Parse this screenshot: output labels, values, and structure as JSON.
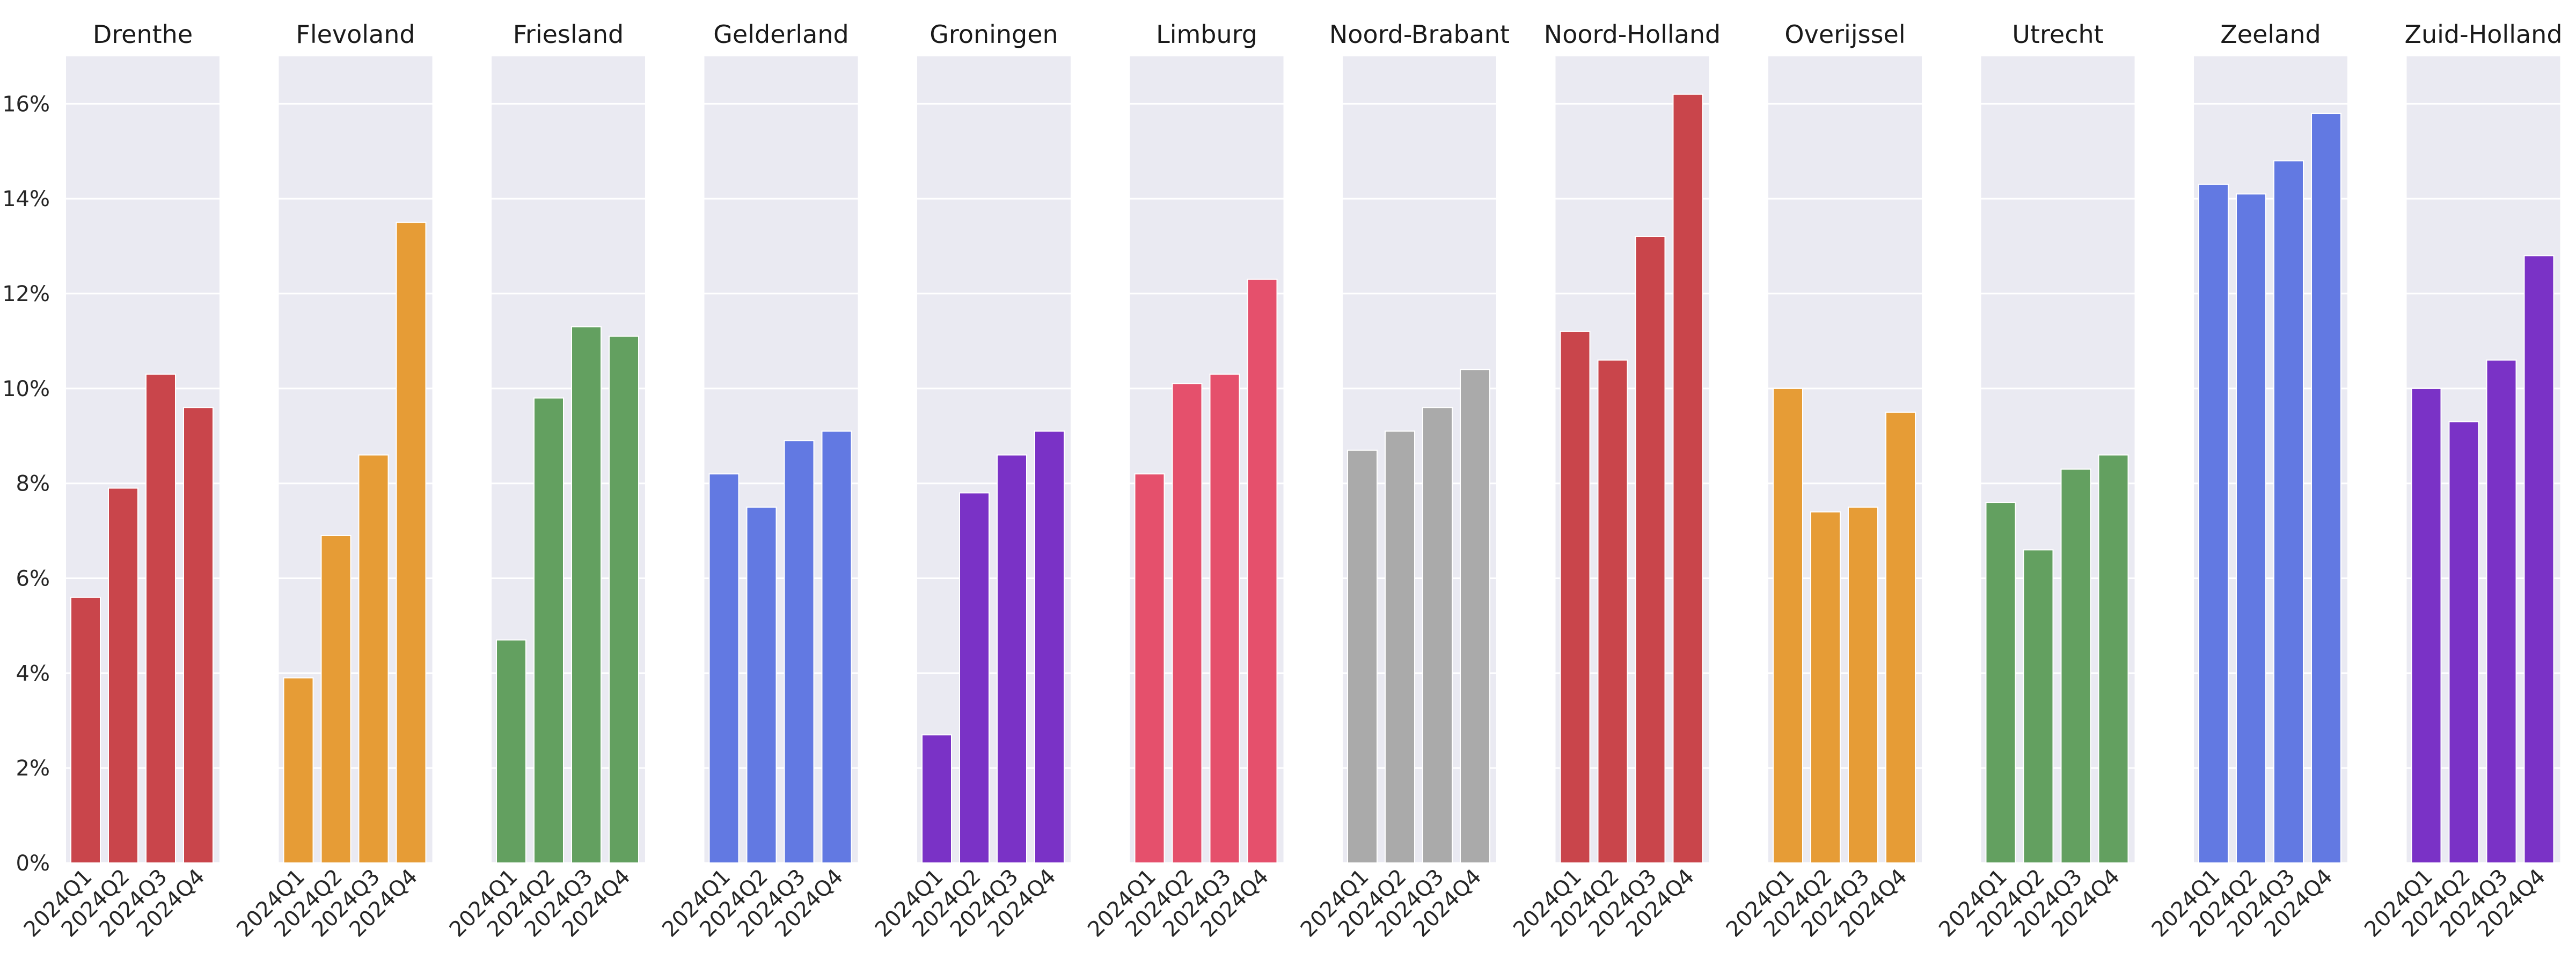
{
  "chart_data": {
    "type": "bar",
    "layout": "small-multiples",
    "ylim": [
      0,
      17
    ],
    "yticks": [
      0,
      2,
      4,
      6,
      8,
      10,
      12,
      14,
      16
    ],
    "ytick_labels": [
      "0%",
      "2%",
      "4%",
      "6%",
      "8%",
      "10%",
      "12%",
      "14%",
      "16%"
    ],
    "categories": [
      "2024Q1",
      "2024Q2",
      "2024Q3",
      "2024Q4"
    ],
    "grid": true,
    "panels": [
      {
        "title": "Drenthe",
        "color": "#c9454b",
        "values": [
          5.6,
          7.9,
          10.3,
          9.6
        ]
      },
      {
        "title": "Flevoland",
        "color": "#e69c36",
        "values": [
          3.9,
          6.9,
          8.6,
          13.5
        ]
      },
      {
        "title": "Friesland",
        "color": "#63a060",
        "values": [
          4.7,
          9.8,
          11.3,
          11.1
        ]
      },
      {
        "title": "Gelderland",
        "color": "#6279e2",
        "values": [
          8.2,
          7.5,
          8.9,
          9.1
        ]
      },
      {
        "title": "Groningen",
        "color": "#7a32c6",
        "values": [
          2.7,
          7.8,
          8.6,
          9.1
        ]
      },
      {
        "title": "Limburg",
        "color": "#e5506c",
        "values": [
          8.2,
          10.1,
          10.3,
          12.3
        ]
      },
      {
        "title": "Noord-Brabant",
        "color": "#aaaaaa",
        "values": [
          8.7,
          9.1,
          9.6,
          10.4
        ]
      },
      {
        "title": "Noord-Holland",
        "color": "#c9454b",
        "values": [
          11.2,
          10.6,
          13.2,
          16.2
        ]
      },
      {
        "title": "Overijssel",
        "color": "#e69c36",
        "values": [
          10.0,
          7.4,
          7.5,
          9.5
        ]
      },
      {
        "title": "Utrecht",
        "color": "#63a060",
        "values": [
          7.6,
          6.6,
          8.3,
          8.6
        ]
      },
      {
        "title": "Zeeland",
        "color": "#6279e2",
        "values": [
          14.3,
          14.1,
          14.8,
          15.8
        ]
      },
      {
        "title": "Zuid-Holland",
        "color": "#7a32c6",
        "values": [
          10.0,
          9.3,
          10.6,
          12.8
        ]
      }
    ]
  }
}
